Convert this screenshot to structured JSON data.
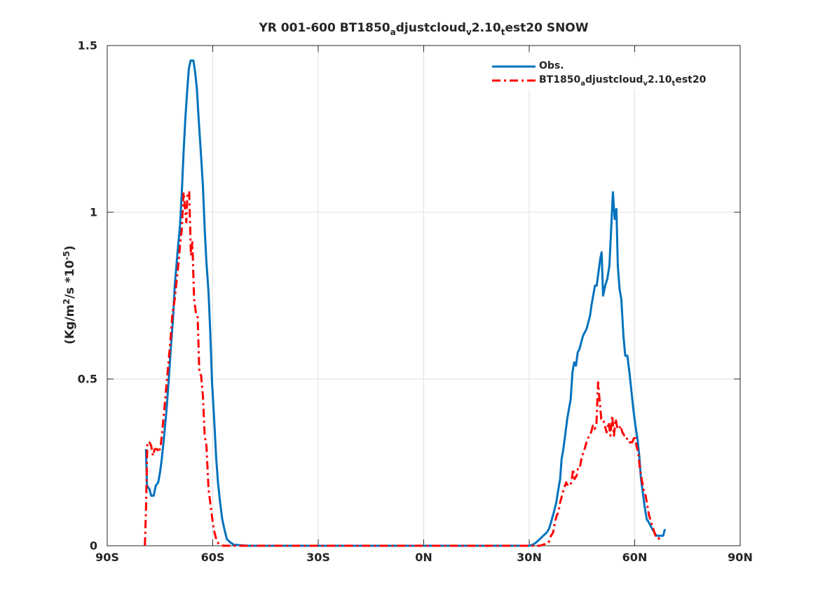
{
  "chart_data": {
    "type": "line",
    "title": {
      "pre": "YR 001-600 BT1850",
      "sub1": "a",
      "mid1": "djustcloud",
      "sub2": "v",
      "mid2": "2.10",
      "sub3": "t",
      "post": "est20 SNOW"
    },
    "xlabel": "",
    "ylabel": {
      "pre": "(Kg/m",
      "sup1": "2",
      "mid": "/s *10",
      "sup2": "-5",
      "post": ")"
    },
    "xlim": [
      -90,
      90
    ],
    "ylim": [
      0,
      1.5
    ],
    "xticks": [
      {
        "value": -90,
        "label": "90S"
      },
      {
        "value": -60,
        "label": "60S"
      },
      {
        "value": -30,
        "label": "30S"
      },
      {
        "value": 0,
        "label": "0N"
      },
      {
        "value": 30,
        "label": "30N"
      },
      {
        "value": 60,
        "label": "60N"
      },
      {
        "value": 90,
        "label": "90N"
      }
    ],
    "yticks": [
      {
        "value": 0,
        "label": "0"
      },
      {
        "value": 0.5,
        "label": "0.5"
      },
      {
        "value": 1,
        "label": "1"
      },
      {
        "value": 1.5,
        "label": "1.5"
      }
    ],
    "grid": true,
    "legend_position": "top-right",
    "series": [
      {
        "name": "Obs.",
        "color": "#0072bd",
        "style": "solid",
        "points": [
          [
            -79,
            0.29
          ],
          [
            -78.7,
            0.18
          ],
          [
            -78,
            0.17
          ],
          [
            -77.5,
            0.15
          ],
          [
            -76.8,
            0.15
          ],
          [
            -76.2,
            0.18
          ],
          [
            -75.5,
            0.19
          ],
          [
            -75,
            0.22
          ],
          [
            -74.5,
            0.26
          ],
          [
            -74,
            0.31
          ],
          [
            -73.2,
            0.4
          ],
          [
            -72.5,
            0.5
          ],
          [
            -72,
            0.58
          ],
          [
            -71.3,
            0.68
          ],
          [
            -70.8,
            0.78
          ],
          [
            -70,
            0.88
          ],
          [
            -69.3,
            0.96
          ],
          [
            -68.8,
            1.06
          ],
          [
            -68.3,
            1.18
          ],
          [
            -67.8,
            1.28
          ],
          [
            -67.3,
            1.36
          ],
          [
            -66.8,
            1.43
          ],
          [
            -66.3,
            1.455
          ],
          [
            -65.5,
            1.455
          ],
          [
            -65,
            1.42
          ],
          [
            -64.5,
            1.37
          ],
          [
            -64,
            1.28
          ],
          [
            -63.5,
            1.2
          ],
          [
            -62.8,
            1.08
          ],
          [
            -62.3,
            0.95
          ],
          [
            -61.8,
            0.85
          ],
          [
            -61.2,
            0.76
          ],
          [
            -60.7,
            0.64
          ],
          [
            -60.2,
            0.49
          ],
          [
            -59.6,
            0.38
          ],
          [
            -59,
            0.26
          ],
          [
            -58.5,
            0.19
          ],
          [
            -57.9,
            0.13
          ],
          [
            -57.3,
            0.08
          ],
          [
            -56.7,
            0.05
          ],
          [
            -56,
            0.02
          ],
          [
            -55,
            0.01
          ],
          [
            -54,
            0.003
          ],
          [
            -50,
            0.0
          ],
          [
            0,
            0.0
          ],
          [
            30,
            0.0
          ],
          [
            31,
            0.003
          ],
          [
            32,
            0.01
          ],
          [
            33,
            0.02
          ],
          [
            34,
            0.03
          ],
          [
            35,
            0.04
          ],
          [
            35.6,
            0.05
          ],
          [
            36.2,
            0.07
          ],
          [
            37,
            0.1
          ],
          [
            37.7,
            0.13
          ],
          [
            38.3,
            0.17
          ],
          [
            38.8,
            0.2
          ],
          [
            39.2,
            0.26
          ],
          [
            39.7,
            0.29
          ],
          [
            40.2,
            0.33
          ],
          [
            40.8,
            0.38
          ],
          [
            41.3,
            0.41
          ],
          [
            41.8,
            0.44
          ],
          [
            42.3,
            0.52
          ],
          [
            42.8,
            0.55
          ],
          [
            43.3,
            0.54
          ],
          [
            43.8,
            0.58
          ],
          [
            44.3,
            0.59
          ],
          [
            44.8,
            0.61
          ],
          [
            45.3,
            0.63
          ],
          [
            45.8,
            0.64
          ],
          [
            46.3,
            0.65
          ],
          [
            46.8,
            0.67
          ],
          [
            47.3,
            0.69
          ],
          [
            47.7,
            0.72
          ],
          [
            48.2,
            0.75
          ],
          [
            48.7,
            0.78
          ],
          [
            49.2,
            0.78
          ],
          [
            49.7,
            0.82
          ],
          [
            50.2,
            0.86
          ],
          [
            50.6,
            0.88
          ],
          [
            51,
            0.75
          ],
          [
            51.6,
            0.78
          ],
          [
            52.2,
            0.8
          ],
          [
            52.8,
            0.84
          ],
          [
            53.3,
            0.95
          ],
          [
            53.8,
            1.06
          ],
          [
            54.3,
            0.98
          ],
          [
            54.8,
            1.01
          ],
          [
            55.2,
            0.84
          ],
          [
            55.7,
            0.77
          ],
          [
            56.2,
            0.74
          ],
          [
            56.8,
            0.63
          ],
          [
            57.3,
            0.57
          ],
          [
            57.9,
            0.57
          ],
          [
            58.5,
            0.52
          ],
          [
            59,
            0.47
          ],
          [
            59.6,
            0.41
          ],
          [
            60.2,
            0.36
          ],
          [
            60.8,
            0.32
          ],
          [
            61.3,
            0.27
          ],
          [
            61.8,
            0.2
          ],
          [
            62.3,
            0.16
          ],
          [
            62.8,
            0.12
          ],
          [
            63.4,
            0.08
          ],
          [
            64,
            0.07
          ],
          [
            64.5,
            0.06
          ],
          [
            65,
            0.05
          ],
          [
            65.6,
            0.04
          ],
          [
            66.2,
            0.03
          ],
          [
            66.8,
            0.03
          ],
          [
            67.5,
            0.03
          ],
          [
            68.1,
            0.03
          ],
          [
            68.6,
            0.05
          ]
        ]
      },
      {
        "name": {
          "pre": "BT1850",
          "sub1": "a",
          "mid1": "djustcloud",
          "sub2": "v",
          "mid2": "2.10",
          "sub3": "t",
          "post": "est20"
        },
        "color": "#ff0000",
        "style": "dash-dot",
        "points": [
          [
            -79.3,
            0.0
          ],
          [
            -79,
            0.1
          ],
          [
            -78.6,
            0.31
          ],
          [
            -78,
            0.31
          ],
          [
            -77.5,
            0.3
          ],
          [
            -77,
            0.27
          ],
          [
            -76.5,
            0.29
          ],
          [
            -75.8,
            0.29
          ],
          [
            -75.3,
            0.28
          ],
          [
            -74.8,
            0.3
          ],
          [
            -74.3,
            0.35
          ],
          [
            -73.6,
            0.43
          ],
          [
            -73,
            0.5
          ],
          [
            -72.5,
            0.56
          ],
          [
            -72,
            0.62
          ],
          [
            -71.5,
            0.69
          ],
          [
            -70.8,
            0.74
          ],
          [
            -70.2,
            0.8
          ],
          [
            -69.8,
            0.84
          ],
          [
            -69.3,
            0.9
          ],
          [
            -68.8,
            0.95
          ],
          [
            -68.3,
            1.06
          ],
          [
            -67.8,
            1.0
          ],
          [
            -67.5,
            0.97
          ],
          [
            -67.2,
            1.06
          ],
          [
            -66.7,
            1.06
          ],
          [
            -66.2,
            0.87
          ],
          [
            -65.8,
            0.91
          ],
          [
            -65.3,
            0.74
          ],
          [
            -64.8,
            0.7
          ],
          [
            -64.3,
            0.69
          ],
          [
            -63.8,
            0.52
          ],
          [
            -63.3,
            0.51
          ],
          [
            -62.8,
            0.45
          ],
          [
            -62.3,
            0.33
          ],
          [
            -61.8,
            0.3
          ],
          [
            -61.2,
            0.17
          ],
          [
            -60.6,
            0.12
          ],
          [
            -60,
            0.07
          ],
          [
            -59.5,
            0.04
          ],
          [
            -59,
            0.02
          ],
          [
            -58.3,
            0.005
          ],
          [
            -57,
            0.0
          ],
          [
            0,
            0.0
          ],
          [
            33,
            0.0
          ],
          [
            34.5,
            0.005
          ],
          [
            35.5,
            0.01
          ],
          [
            36.2,
            0.03
          ],
          [
            36.8,
            0.04
          ],
          [
            37.3,
            0.07
          ],
          [
            37.8,
            0.09
          ],
          [
            38.3,
            0.1
          ],
          [
            38.8,
            0.13
          ],
          [
            39.3,
            0.15
          ],
          [
            39.8,
            0.17
          ],
          [
            40.5,
            0.19
          ],
          [
            41,
            0.18
          ],
          [
            41.5,
            0.18
          ],
          [
            42,
            0.19
          ],
          [
            42.5,
            0.23
          ],
          [
            42.9,
            0.2
          ],
          [
            43.5,
            0.21
          ],
          [
            44,
            0.24
          ],
          [
            44.5,
            0.24
          ],
          [
            45,
            0.27
          ],
          [
            45.5,
            0.28
          ],
          [
            46,
            0.3
          ],
          [
            46.6,
            0.32
          ],
          [
            47.1,
            0.33
          ],
          [
            47.6,
            0.34
          ],
          [
            48.1,
            0.36
          ],
          [
            48.6,
            0.35
          ],
          [
            49.1,
            0.36
          ],
          [
            49.6,
            0.49
          ],
          [
            50,
            0.44
          ],
          [
            50.5,
            0.38
          ],
          [
            51,
            0.38
          ],
          [
            51.5,
            0.36
          ],
          [
            52,
            0.34
          ],
          [
            52.6,
            0.37
          ],
          [
            53.1,
            0.33
          ],
          [
            53.6,
            0.39
          ],
          [
            54.1,
            0.33
          ],
          [
            54.6,
            0.38
          ],
          [
            55.1,
            0.35
          ],
          [
            55.5,
            0.35
          ],
          [
            56,
            0.36
          ],
          [
            56.5,
            0.34
          ],
          [
            57.1,
            0.33
          ],
          [
            57.6,
            0.33
          ],
          [
            58.1,
            0.31
          ],
          [
            58.6,
            0.31
          ],
          [
            59.3,
            0.31
          ],
          [
            60,
            0.33
          ],
          [
            60.5,
            0.3
          ],
          [
            61,
            0.28
          ],
          [
            61.5,
            0.23
          ],
          [
            62,
            0.2
          ],
          [
            62.5,
            0.17
          ],
          [
            63.1,
            0.15
          ],
          [
            63.6,
            0.12
          ],
          [
            64.1,
            0.09
          ],
          [
            64.7,
            0.07
          ],
          [
            65.3,
            0.05
          ],
          [
            65.9,
            0.03
          ],
          [
            66.5,
            0.03
          ],
          [
            67,
            0.02
          ],
          [
            67.5,
            0.02
          ]
        ]
      }
    ]
  }
}
